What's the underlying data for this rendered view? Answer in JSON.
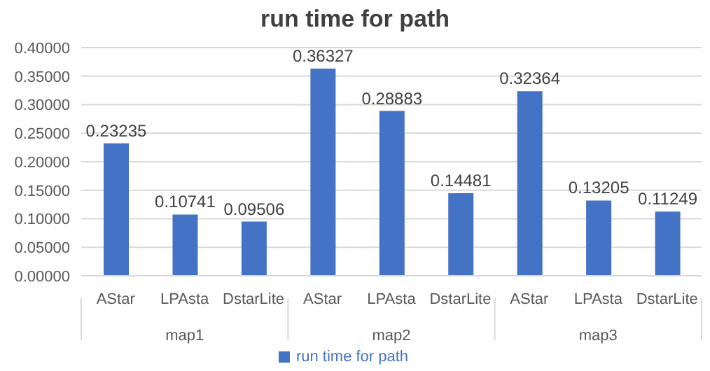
{
  "chart_data": {
    "type": "bar",
    "title": "run time for path",
    "categories": [
      "AStar",
      "LPAsta",
      "DstarLite",
      "AStar",
      "LPAsta",
      "DstarLite",
      "AStar",
      "LPAsta",
      "DstarLite"
    ],
    "series": [
      {
        "name": "run time for path",
        "color": "#4472c4",
        "values": [
          0.23235,
          0.10741,
          0.09506,
          0.36327,
          0.28883,
          0.14481,
          0.32364,
          0.13205,
          0.11249
        ]
      }
    ],
    "ylim": [
      0,
      0.4
    ],
    "yticks": [
      {
        "value": 0,
        "label": "0.00000"
      },
      {
        "value": 0.05,
        "label": "0.05000"
      },
      {
        "value": 0.1,
        "label": "0.10000"
      },
      {
        "value": 0.15,
        "label": "0.15000"
      },
      {
        "value": 0.2,
        "label": "0.20000"
      },
      {
        "value": 0.25,
        "label": "0.25000"
      },
      {
        "value": 0.3,
        "label": "0.30000"
      },
      {
        "value": 0.35,
        "label": "0.35000"
      },
      {
        "value": 0.4,
        "label": "0.40000"
      }
    ],
    "annotations": [
      "map1",
      "map2",
      "map3"
    ],
    "data_labels": true,
    "grid": "y",
    "legend": "bottom"
  }
}
